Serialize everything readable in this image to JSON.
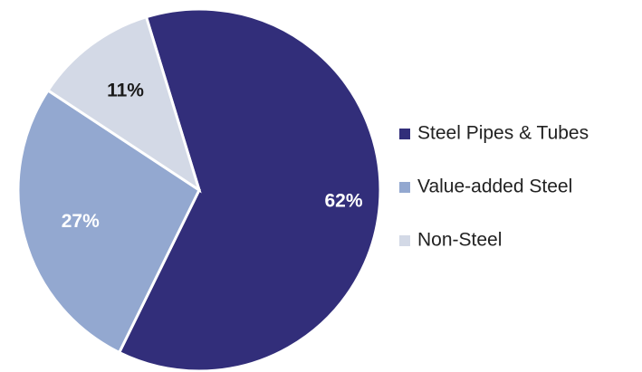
{
  "chart_data": {
    "type": "pie",
    "categories": [
      "Steel Pipes & Tubes",
      "Value-added Steel",
      "Non-Steel"
    ],
    "values": [
      62,
      27,
      11
    ],
    "value_labels": [
      "62%",
      "27%",
      "11%"
    ],
    "colors": [
      "#322e7a",
      "#93a8d0",
      "#d3d9e6"
    ],
    "legend": "right"
  }
}
